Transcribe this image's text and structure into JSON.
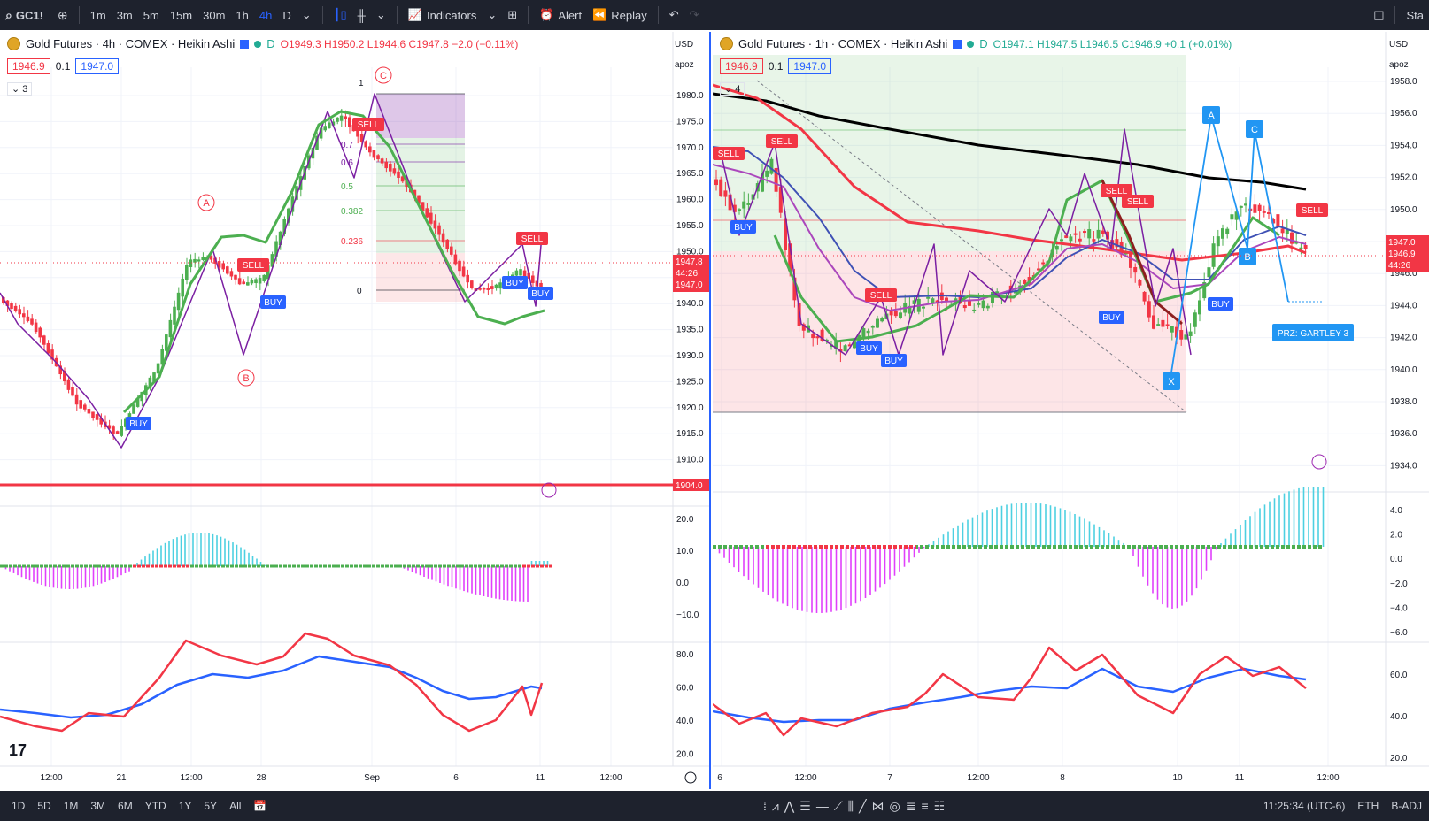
{
  "topbar": {
    "symbol": "GC1!",
    "intervals": [
      "1m",
      "3m",
      "5m",
      "15m",
      "30m",
      "1h",
      "4h",
      "D"
    ],
    "active_interval": "4h",
    "indicators_label": "Indicators",
    "alert_label": "Alert",
    "replay_label": "Replay",
    "right_text": "Sta"
  },
  "left_chart": {
    "title": "Gold Futures · 4h · COMEX · Heikin Ashi",
    "ohlc": {
      "o": "O1949.3",
      "h": "H1950.2",
      "l": "L1944.6",
      "c": "C1947.8",
      "chg": "−2.0 (−0.11%)"
    },
    "bid": "1946.9",
    "spread": "0.1",
    "ask": "1947.0",
    "collapse_count": "3",
    "currency": "USD",
    "scale_mode": "apoz",
    "price_ticks": [
      "1980.0",
      "1975.0",
      "1970.0",
      "1965.0",
      "1960.0",
      "1955.0",
      "1950.0",
      "1945.0",
      "1940.0",
      "1935.0",
      "1930.0",
      "1925.0",
      "1920.0",
      "1915.0",
      "1910.0"
    ],
    "macd_ticks": [
      "20.0",
      "10.0",
      "0.0",
      "−10.0"
    ],
    "rsi_ticks": [
      "80.0",
      "60.0",
      "40.0",
      "20.0"
    ],
    "time_ticks": [
      "12:00",
      "21",
      "12:00",
      "28",
      "Sep",
      "6",
      "11",
      "12:00"
    ],
    "last_price": "1947.8",
    "countdown": "44:26",
    "last_price2": "1947.0",
    "hline_price": "1904.0",
    "fib_levels": [
      "1",
      "0.7",
      "0.6",
      "0.5",
      "0.382",
      "0.236",
      "0"
    ],
    "wave_labels": [
      "A",
      "B",
      "C"
    ],
    "signals": [
      "BUY",
      "SELL",
      "BUY",
      "SELL",
      "BUY",
      "SELL",
      "BUY"
    ]
  },
  "right_chart": {
    "title": "Gold Futures · 1h · COMEX · Heikin Ashi",
    "ohlc": {
      "o": "O1947.1",
      "h": "H1947.5",
      "l": "L1946.5",
      "c": "C1946.9",
      "chg": "+0.1 (+0.01%)"
    },
    "bid": "1946.9",
    "spread": "0.1",
    "ask": "1947.0",
    "collapse_count": "4",
    "currency": "USD",
    "scale_mode": "apoz",
    "price_ticks": [
      "1958.0",
      "1956.0",
      "1954.0",
      "1952.0",
      "1950.0",
      "1948.0",
      "1946.0",
      "1944.0",
      "1942.0",
      "1940.0",
      "1938.0",
      "1936.0",
      "1934.0"
    ],
    "macd_ticks": [
      "4.0",
      "2.0",
      "0.0",
      "−2.0",
      "−4.0",
      "−6.0"
    ],
    "rsi_ticks": [
      "60.0",
      "40.0",
      "20.0"
    ],
    "time_ticks": [
      "6",
      "12:00",
      "7",
      "12:00",
      "8",
      "10",
      "11",
      "12:00"
    ],
    "last_price": "1947.0",
    "last_price2": "1946.9",
    "countdown": "44:26",
    "pattern_labels": [
      "X",
      "A",
      "B",
      "C"
    ],
    "prz_label": "PRZ: GARTLEY 3",
    "signals": [
      "SELL",
      "SELL",
      "BUY",
      "SELL",
      "BUY",
      "BUY",
      "BUY",
      "SELL",
      "SELL",
      "BUY",
      "SELL"
    ]
  },
  "bottombar": {
    "ranges": [
      "1D",
      "5D",
      "1M",
      "3M",
      "6M",
      "YTD",
      "1Y",
      "5Y",
      "All"
    ],
    "clock": "11:25:34 (UTC-6)",
    "session": "ETH",
    "adj": "B-ADJ"
  },
  "colors": {
    "up": "#26a69a",
    "down": "#f23645",
    "green_ha": "#4caf50",
    "purple": "#7b1fa2",
    "blue": "#2962ff",
    "accent": "#2962ff",
    "bar_bg": "#1e222d"
  }
}
